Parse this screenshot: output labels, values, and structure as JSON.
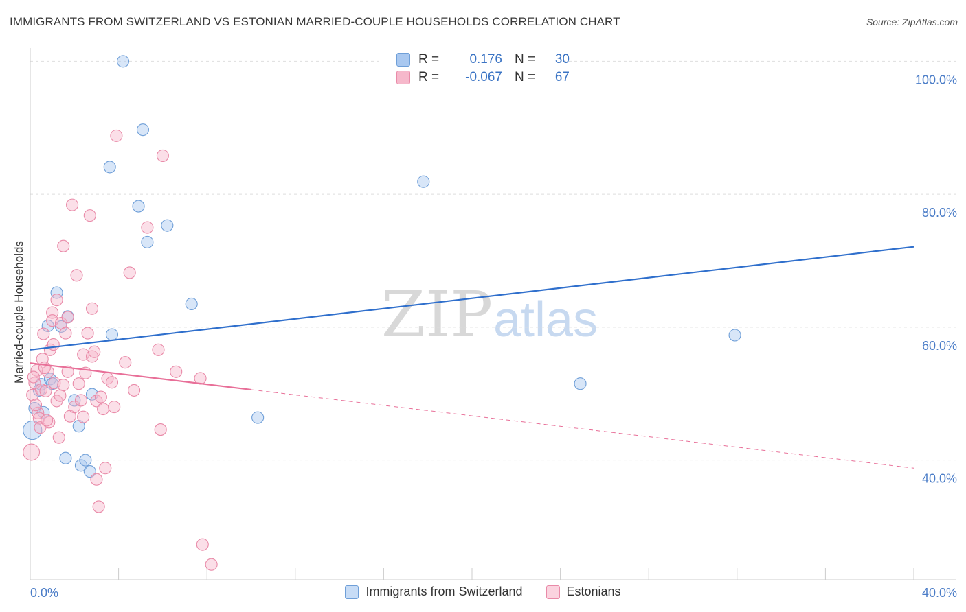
{
  "title": "IMMIGRANTS FROM SWITZERLAND VS ESTONIAN MARRIED-COUPLE HOUSEHOLDS CORRELATION CHART",
  "source": "Source: ZipAtlas.com",
  "watermark": {
    "zip": "ZIP",
    "atlas": "atlas"
  },
  "stats": [
    {
      "r_label": "R =",
      "r_value": "0.176",
      "n_label": "N =",
      "n_value": "30",
      "color": "#a9c8f0",
      "border": "#6f9fd8"
    },
    {
      "r_label": "R =",
      "r_value": "-0.067",
      "n_label": "N =",
      "n_value": "67",
      "color": "#f6b8cb",
      "border": "#e98aa8"
    }
  ],
  "legend": [
    {
      "label": "Immigrants from Switzerland",
      "color": "#c7dcf6",
      "border": "#6f9fd8"
    },
    {
      "label": "Estonians",
      "color": "#fbd3df",
      "border": "#e98aa8"
    }
  ],
  "chart_data": {
    "type": "scatter",
    "title": "IMMIGRANTS FROM SWITZERLAND VS ESTONIAN MARRIED-COUPLE HOUSEHOLDS CORRELATION CHART",
    "ylabel": "Married-couple Households",
    "xlabel": "",
    "xlim": [
      0,
      40
    ],
    "ylim": [
      22,
      102
    ],
    "x_tick_labels": [
      "0.0%",
      "40.0%"
    ],
    "y_ticks": [
      40,
      60,
      80,
      100
    ],
    "y_tick_labels": [
      "40.0%",
      "60.0%",
      "80.0%",
      "100.0%"
    ],
    "grid": true,
    "series": [
      {
        "name": "Immigrants from Switzerland",
        "color": "#6f9fd8",
        "fill": "#a9c8f0",
        "trend": {
          "x": [
            0,
            40
          ],
          "y": [
            56.6,
            72.1
          ],
          "color": "#2f6fcc"
        },
        "points": [
          [
            0.1,
            44.5,
            1.6
          ],
          [
            0.2,
            47.8,
            1
          ],
          [
            0.4,
            50.5,
            1
          ],
          [
            0.5,
            51.4,
            1
          ],
          [
            0.8,
            60.2,
            1
          ],
          [
            0.9,
            52.2,
            1
          ],
          [
            1.0,
            51.5,
            1
          ],
          [
            1.2,
            65.2,
            1
          ],
          [
            1.4,
            60.1,
            1
          ],
          [
            1.6,
            40.3,
            1
          ],
          [
            1.7,
            61.6,
            1
          ],
          [
            2.0,
            49.0,
            1
          ],
          [
            2.2,
            45.1,
            1
          ],
          [
            2.3,
            39.2,
            1
          ],
          [
            2.5,
            40.0,
            1
          ],
          [
            2.7,
            38.3,
            1
          ],
          [
            2.8,
            49.9,
            1
          ],
          [
            3.6,
            84.1,
            1
          ],
          [
            3.7,
            58.9,
            1
          ],
          [
            4.2,
            100.0,
            1
          ],
          [
            4.9,
            78.2,
            1
          ],
          [
            5.1,
            89.7,
            1
          ],
          [
            5.3,
            72.8,
            1
          ],
          [
            6.2,
            75.3,
            1
          ],
          [
            7.3,
            63.5,
            1
          ],
          [
            10.3,
            46.4,
            1
          ],
          [
            17.8,
            81.9,
            1
          ],
          [
            24.9,
            51.5,
            1
          ],
          [
            31.9,
            58.8,
            1
          ],
          [
            0.6,
            47.2,
            1
          ]
        ]
      },
      {
        "name": "Estonians",
        "color": "#e98aa8",
        "fill": "#f6b8cb",
        "trend": {
          "x": [
            0,
            10
          ],
          "y": [
            54.6,
            50.6
          ],
          "color": "#e86f98"
        },
        "trend_dashed": {
          "x": [
            10,
            40
          ],
          "y": [
            50.6,
            38.8
          ]
        },
        "points": [
          [
            0.05,
            41.2,
            1.4
          ],
          [
            0.1,
            49.8,
            1
          ],
          [
            0.2,
            51.6,
            1
          ],
          [
            0.3,
            53.5,
            1
          ],
          [
            0.35,
            47.1,
            1
          ],
          [
            0.4,
            46.3,
            1
          ],
          [
            0.45,
            44.9,
            1
          ],
          [
            0.5,
            50.6,
            1
          ],
          [
            0.6,
            59.0,
            1
          ],
          [
            0.7,
            50.4,
            1
          ],
          [
            0.8,
            53.3,
            1
          ],
          [
            0.85,
            45.7,
            1
          ],
          [
            0.9,
            56.6,
            1
          ],
          [
            1.0,
            62.2,
            1
          ],
          [
            1.0,
            61.0,
            1
          ],
          [
            1.1,
            51.6,
            1
          ],
          [
            1.2,
            48.9,
            1
          ],
          [
            1.2,
            64.1,
            1
          ],
          [
            1.3,
            43.4,
            1
          ],
          [
            1.4,
            60.6,
            1
          ],
          [
            1.5,
            72.2,
            1
          ],
          [
            1.5,
            51.3,
            1
          ],
          [
            1.6,
            59.1,
            1
          ],
          [
            1.7,
            53.3,
            1
          ],
          [
            1.7,
            61.5,
            1
          ],
          [
            1.8,
            46.6,
            1
          ],
          [
            1.9,
            78.4,
            1
          ],
          [
            2.0,
            48.0,
            1
          ],
          [
            2.1,
            67.8,
            1
          ],
          [
            2.2,
            51.5,
            1
          ],
          [
            2.3,
            49.0,
            1
          ],
          [
            2.4,
            55.9,
            1
          ],
          [
            2.4,
            46.5,
            1
          ],
          [
            2.5,
            53.1,
            1
          ],
          [
            2.6,
            59.1,
            1
          ],
          [
            2.7,
            76.8,
            1
          ],
          [
            2.8,
            55.6,
            1
          ],
          [
            2.8,
            62.8,
            1
          ],
          [
            2.9,
            56.3,
            1
          ],
          [
            3.0,
            37.1,
            1
          ],
          [
            3.0,
            48.9,
            1
          ],
          [
            3.1,
            33.0,
            1
          ],
          [
            3.2,
            49.5,
            1
          ],
          [
            3.3,
            47.7,
            1
          ],
          [
            3.4,
            38.8,
            1
          ],
          [
            3.5,
            52.3,
            1
          ],
          [
            3.7,
            51.7,
            1
          ],
          [
            3.8,
            48.0,
            1
          ],
          [
            3.9,
            88.8,
            1
          ],
          [
            4.3,
            54.7,
            1
          ],
          [
            4.5,
            68.2,
            1
          ],
          [
            4.7,
            50.5,
            1
          ],
          [
            5.3,
            75.0,
            1
          ],
          [
            5.8,
            56.6,
            1
          ],
          [
            5.9,
            44.6,
            1
          ],
          [
            6.0,
            85.8,
            1
          ],
          [
            6.6,
            53.3,
            1
          ],
          [
            7.7,
            52.3,
            1
          ],
          [
            7.8,
            27.3,
            1
          ],
          [
            8.2,
            24.3,
            1
          ],
          [
            0.15,
            52.5,
            1
          ],
          [
            0.25,
            48.3,
            1
          ],
          [
            0.55,
            55.2,
            1
          ],
          [
            0.75,
            46.0,
            1
          ],
          [
            1.05,
            57.4,
            1
          ],
          [
            1.35,
            49.7,
            1
          ],
          [
            0.65,
            53.9,
            1
          ]
        ]
      }
    ]
  }
}
